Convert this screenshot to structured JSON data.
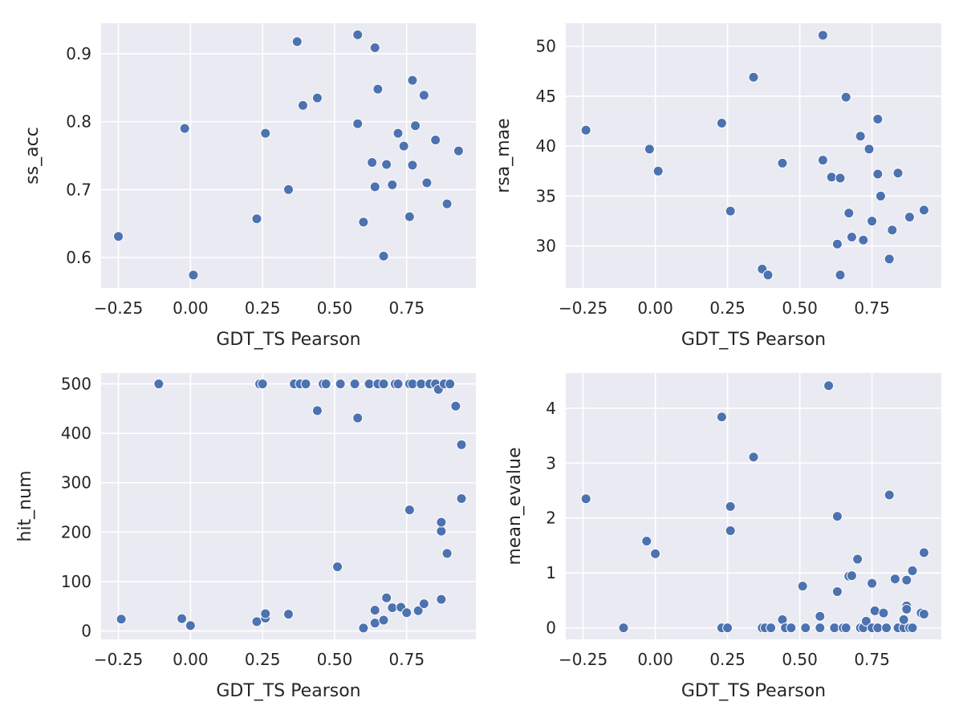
{
  "style": {
    "panel_bg": "#EAEAF2",
    "grid_color": "#FFFFFF",
    "point_color": "#4C72B0",
    "point_edge": "#FFFFFF",
    "text_color": "#262626"
  },
  "chart_data": [
    {
      "type": "scatter",
      "xlabel": "GDT_TS Pearson",
      "ylabel": "ss_acc",
      "xlim": [
        -0.31,
        0.99
      ],
      "ylim": [
        0.555,
        0.945
      ],
      "xticks": [
        -0.25,
        0.0,
        0.25,
        0.5,
        0.75
      ],
      "xtick_labels": [
        "−0.25",
        "0.00",
        "0.25",
        "0.50",
        "0.75"
      ],
      "yticks": [
        0.6,
        0.7,
        0.8,
        0.9
      ],
      "ytick_labels": [
        "0.6",
        "0.7",
        "0.8",
        "0.9"
      ],
      "grid": true,
      "points": [
        [
          -0.25,
          0.631
        ],
        [
          -0.02,
          0.79
        ],
        [
          0.01,
          0.574
        ],
        [
          0.23,
          0.657
        ],
        [
          0.26,
          0.783
        ],
        [
          0.34,
          0.7
        ],
        [
          0.37,
          0.918
        ],
        [
          0.39,
          0.824
        ],
        [
          0.44,
          0.835
        ],
        [
          0.58,
          0.797
        ],
        [
          0.58,
          0.928
        ],
        [
          0.6,
          0.652
        ],
        [
          0.63,
          0.74
        ],
        [
          0.64,
          0.909
        ],
        [
          0.64,
          0.704
        ],
        [
          0.65,
          0.848
        ],
        [
          0.67,
          0.602
        ],
        [
          0.68,
          0.737
        ],
        [
          0.7,
          0.707
        ],
        [
          0.72,
          0.783
        ],
        [
          0.74,
          0.764
        ],
        [
          0.76,
          0.66
        ],
        [
          0.77,
          0.736
        ],
        [
          0.77,
          0.861
        ],
        [
          0.78,
          0.794
        ],
        [
          0.81,
          0.839
        ],
        [
          0.82,
          0.71
        ],
        [
          0.85,
          0.773
        ],
        [
          0.89,
          0.679
        ],
        [
          0.93,
          0.757
        ]
      ]
    },
    {
      "type": "scatter",
      "xlabel": "GDT_TS Pearson",
      "ylabel": "rsa_mae",
      "xlim": [
        -0.31,
        0.99
      ],
      "ylim": [
        25.8,
        52.3
      ],
      "xticks": [
        -0.25,
        0.0,
        0.25,
        0.5,
        0.75
      ],
      "xtick_labels": [
        "−0.25",
        "0.00",
        "0.25",
        "0.50",
        "0.75"
      ],
      "yticks": [
        30,
        35,
        40,
        45,
        50
      ],
      "ytick_labels": [
        "30",
        "35",
        "40",
        "45",
        "50"
      ],
      "grid": true,
      "points": [
        [
          -0.24,
          41.6
        ],
        [
          -0.02,
          39.7
        ],
        [
          0.01,
          37.5
        ],
        [
          0.23,
          42.3
        ],
        [
          0.26,
          33.5
        ],
        [
          0.34,
          46.9
        ],
        [
          0.37,
          27.7
        ],
        [
          0.39,
          27.1
        ],
        [
          0.44,
          38.3
        ],
        [
          0.58,
          51.1
        ],
        [
          0.58,
          38.6
        ],
        [
          0.61,
          36.9
        ],
        [
          0.63,
          30.2
        ],
        [
          0.64,
          36.8
        ],
        [
          0.64,
          27.1
        ],
        [
          0.66,
          44.9
        ],
        [
          0.67,
          33.3
        ],
        [
          0.68,
          30.9
        ],
        [
          0.71,
          41.0
        ],
        [
          0.72,
          30.6
        ],
        [
          0.74,
          39.7
        ],
        [
          0.75,
          32.5
        ],
        [
          0.77,
          42.7
        ],
        [
          0.77,
          37.2
        ],
        [
          0.78,
          35.0
        ],
        [
          0.81,
          28.7
        ],
        [
          0.82,
          31.6
        ],
        [
          0.84,
          37.3
        ],
        [
          0.88,
          32.9
        ],
        [
          0.93,
          33.6
        ]
      ]
    },
    {
      "type": "scatter",
      "xlabel": "GDT_TS Pearson",
      "ylabel": "hit_num",
      "xlim": [
        -0.31,
        0.99
      ],
      "ylim": [
        -17,
        522
      ],
      "xticks": [
        -0.25,
        0.0,
        0.25,
        0.5,
        0.75
      ],
      "xtick_labels": [
        "−0.25",
        "0.00",
        "0.25",
        "0.50",
        "0.75"
      ],
      "yticks": [
        0,
        100,
        200,
        300,
        400,
        500
      ],
      "ytick_labels": [
        "0",
        "100",
        "200",
        "300",
        "400",
        "500"
      ],
      "grid": true,
      "points": [
        [
          -0.24,
          24
        ],
        [
          -0.11,
          500
        ],
        [
          -0.03,
          25
        ],
        [
          0.0,
          11
        ],
        [
          0.23,
          19
        ],
        [
          0.24,
          500
        ],
        [
          0.25,
          500
        ],
        [
          0.26,
          26
        ],
        [
          0.26,
          35
        ],
        [
          0.34,
          34
        ],
        [
          0.36,
          500
        ],
        [
          0.38,
          500
        ],
        [
          0.4,
          500
        ],
        [
          0.44,
          446
        ],
        [
          0.46,
          500
        ],
        [
          0.47,
          500
        ],
        [
          0.51,
          130
        ],
        [
          0.52,
          500
        ],
        [
          0.57,
          500
        ],
        [
          0.58,
          431
        ],
        [
          0.6,
          6
        ],
        [
          0.62,
          500
        ],
        [
          0.64,
          16
        ],
        [
          0.64,
          42
        ],
        [
          0.65,
          500
        ],
        [
          0.67,
          500
        ],
        [
          0.67,
          22
        ],
        [
          0.68,
          67
        ],
        [
          0.7,
          47
        ],
        [
          0.71,
          500
        ],
        [
          0.72,
          500
        ],
        [
          0.73,
          48
        ],
        [
          0.75,
          37
        ],
        [
          0.76,
          500
        ],
        [
          0.76,
          245
        ],
        [
          0.77,
          500
        ],
        [
          0.79,
          41
        ],
        [
          0.8,
          500
        ],
        [
          0.81,
          55
        ],
        [
          0.83,
          500
        ],
        [
          0.85,
          500
        ],
        [
          0.86,
          489
        ],
        [
          0.87,
          202
        ],
        [
          0.87,
          220
        ],
        [
          0.87,
          64
        ],
        [
          0.88,
          500
        ],
        [
          0.89,
          157
        ],
        [
          0.9,
          500
        ],
        [
          0.92,
          455
        ],
        [
          0.94,
          377
        ],
        [
          0.94,
          268
        ]
      ]
    },
    {
      "type": "scatter",
      "xlabel": "GDT_TS Pearson",
      "ylabel": "mean_evalue",
      "xlim": [
        -0.31,
        0.99
      ],
      "ylim": [
        -0.21,
        4.64
      ],
      "xticks": [
        -0.25,
        0.0,
        0.25,
        0.5,
        0.75
      ],
      "xtick_labels": [
        "−0.25",
        "0.00",
        "0.25",
        "0.50",
        "0.75"
      ],
      "yticks": [
        0,
        1,
        2,
        3,
        4
      ],
      "ytick_labels": [
        "0",
        "1",
        "2",
        "3",
        "4"
      ],
      "grid": true,
      "points": [
        [
          -0.24,
          2.35
        ],
        [
          -0.11,
          0.0
        ],
        [
          -0.03,
          1.58
        ],
        [
          0.0,
          1.35
        ],
        [
          0.23,
          3.84
        ],
        [
          0.23,
          0.0
        ],
        [
          0.25,
          0.0
        ],
        [
          0.26,
          2.21
        ],
        [
          0.26,
          1.77
        ],
        [
          0.34,
          3.11
        ],
        [
          0.37,
          0.0
        ],
        [
          0.38,
          0.0
        ],
        [
          0.4,
          0.0
        ],
        [
          0.44,
          0.15
        ],
        [
          0.45,
          0.0
        ],
        [
          0.47,
          0.0
        ],
        [
          0.51,
          0.76
        ],
        [
          0.52,
          0.0
        ],
        [
          0.57,
          0.21
        ],
        [
          0.57,
          0.0
        ],
        [
          0.6,
          4.41
        ],
        [
          0.62,
          0.0
        ],
        [
          0.63,
          0.66
        ],
        [
          0.63,
          2.03
        ],
        [
          0.65,
          0.0
        ],
        [
          0.66,
          0.0
        ],
        [
          0.67,
          0.94
        ],
        [
          0.68,
          0.95
        ],
        [
          0.7,
          1.25
        ],
        [
          0.71,
          0.0
        ],
        [
          0.72,
          0.0
        ],
        [
          0.73,
          0.12
        ],
        [
          0.75,
          0.0
        ],
        [
          0.75,
          0.81
        ],
        [
          0.76,
          0.31
        ],
        [
          0.77,
          0.0
        ],
        [
          0.79,
          0.27
        ],
        [
          0.8,
          0.0
        ],
        [
          0.81,
          2.42
        ],
        [
          0.83,
          0.89
        ],
        [
          0.84,
          0.0
        ],
        [
          0.86,
          0.0
        ],
        [
          0.86,
          0.15
        ],
        [
          0.87,
          0.4
        ],
        [
          0.87,
          0.34
        ],
        [
          0.87,
          0.87
        ],
        [
          0.88,
          0.0
        ],
        [
          0.89,
          1.04
        ],
        [
          0.89,
          0.0
        ],
        [
          0.92,
          0.27
        ],
        [
          0.93,
          1.37
        ],
        [
          0.93,
          0.25
        ]
      ]
    }
  ]
}
